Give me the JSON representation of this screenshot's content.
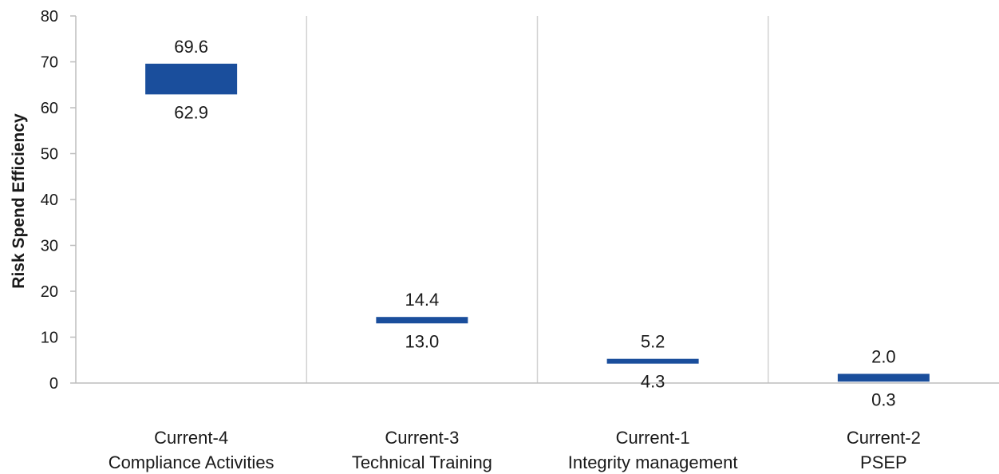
{
  "chart_data": {
    "type": "range-bar",
    "title": "",
    "xlabel": "",
    "ylabel": "Risk Spend Efficiency",
    "ylim": [
      0,
      80
    ],
    "yticks": [
      0,
      10,
      20,
      30,
      40,
      50,
      60,
      70,
      80
    ],
    "grid": false,
    "legend": "none",
    "bar_color": "#1a4e9c",
    "categories": [
      {
        "line1": "Current-4",
        "line2": "Compliance Activities"
      },
      {
        "line1": "Current-3",
        "line2": "Technical Training"
      },
      {
        "line1": "Current-1",
        "line2": "Integrity management"
      },
      {
        "line1": "Current-2",
        "line2": "PSEP"
      }
    ],
    "ranges": [
      {
        "low": 62.9,
        "high": 69.6,
        "low_label": "62.9",
        "high_label": "69.6"
      },
      {
        "low": 13.0,
        "high": 14.4,
        "low_label": "13.0",
        "high_label": "14.4"
      },
      {
        "low": 4.3,
        "high": 5.2,
        "low_label": "4.3",
        "high_label": "5.2"
      },
      {
        "low": 0.3,
        "high": 2.0,
        "low_label": "0.3",
        "high_label": "2.0"
      }
    ]
  }
}
